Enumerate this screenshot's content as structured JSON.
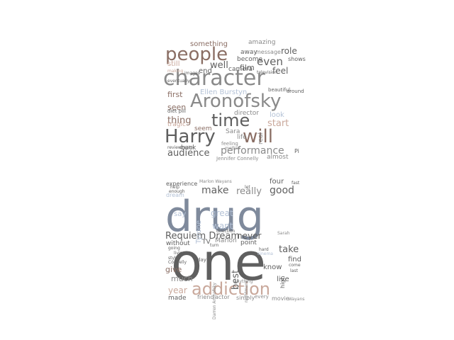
{
  "colors": {
    "background": "#ffffff",
    "gray_dark": "#5f5f5f",
    "gray_mid": "#8a8a8a",
    "brown_dark": "#8a6e64",
    "brown_light": "#c9a89b",
    "blue_gray": "#7f8a9c",
    "blue_light": "#b4c2d6"
  },
  "top_cloud_words": [
    "people",
    "character",
    "Aronofsky",
    "time",
    "Harry",
    "will",
    "audience",
    "performance",
    "even",
    "role",
    "something",
    "well",
    "feel",
    "film",
    "amazing",
    "shows",
    "message",
    "first",
    "seen",
    "thing",
    "Ellen Burstyn",
    "director",
    "start",
    "Sara",
    "life",
    "back",
    "Jennifer Connelly",
    "almost",
    "away",
    "become",
    "camera",
    "still",
    "end",
    "look",
    "seem",
    "tragic",
    "real",
    "around",
    "beautiful",
    "feeling",
    "mother",
    "television",
    "diet pill",
    "eventually",
    "images",
    "making",
    "review",
    "create",
    "Pi"
  ],
  "bottom_cloud_words": [
    "drug",
    "one",
    "addiction",
    "Requiem Dream",
    "make",
    "really",
    "good",
    "four",
    "experience",
    "Marlon Wayans",
    "great",
    "want",
    "never",
    "Marion",
    "point",
    "take",
    "know",
    "best",
    "find",
    "give",
    "live",
    "much",
    "year",
    "made",
    "friend",
    "actor",
    "simply",
    "every",
    "movie",
    "Wayans",
    "high",
    "without",
    "TV",
    "say",
    "dream",
    "Tyrone",
    "day",
    "going",
    "style",
    "living",
    "Darren Aronofsky",
    "nightmare",
    "Sarah",
    "help",
    "enough",
    "hard",
    "cinema",
    "direction",
    "turn",
    "let",
    "fast",
    "come",
    "Connelly",
    "anything",
    "last"
  ]
}
